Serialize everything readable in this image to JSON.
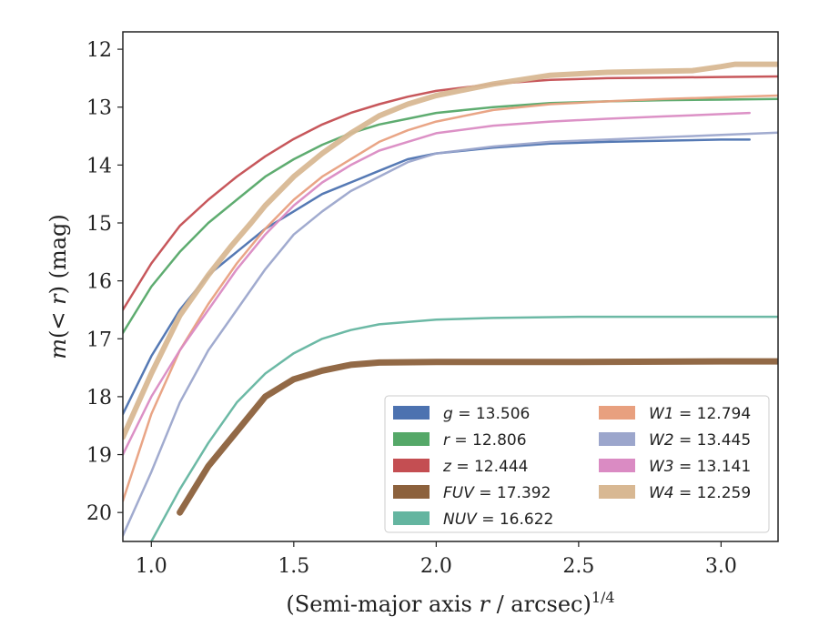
{
  "chart_data": {
    "type": "line",
    "xlabel": "(Semi-major axis r / arcsec)1/4",
    "ylabel": "m(< r) (mag)",
    "xlim": [
      0.9,
      3.2
    ],
    "ylim": [
      20.5,
      11.7
    ],
    "y_inverted": true,
    "x_ticks": [
      "1.0",
      "1.5",
      "2.0",
      "2.5",
      "3.0"
    ],
    "y_ticks": [
      "12",
      "13",
      "14",
      "15",
      "16",
      "17",
      "18",
      "19",
      "20"
    ],
    "grid": false,
    "legend_position": "lower-right",
    "legend_columns": 2,
    "series": [
      {
        "name": "g = 13.506",
        "color": "#4C72B0",
        "x": [
          0.9,
          1.0,
          1.1,
          1.2,
          1.3,
          1.4,
          1.5,
          1.6,
          1.7,
          1.8,
          1.9,
          2.0,
          2.2,
          2.4,
          2.6,
          2.8,
          3.0,
          3.1
        ],
        "y": [
          18.3,
          17.3,
          16.5,
          15.9,
          15.5,
          15.1,
          14.8,
          14.5,
          14.3,
          14.1,
          13.9,
          13.8,
          13.7,
          13.63,
          13.6,
          13.58,
          13.56,
          13.56
        ]
      },
      {
        "name": "r = 12.806",
        "color": "#55A868",
        "x": [
          0.9,
          1.0,
          1.1,
          1.2,
          1.3,
          1.4,
          1.5,
          1.6,
          1.7,
          1.8,
          1.9,
          2.0,
          2.2,
          2.4,
          2.6,
          2.8,
          3.0,
          3.2
        ],
        "y": [
          16.9,
          16.1,
          15.5,
          15.0,
          14.6,
          14.2,
          13.9,
          13.65,
          13.45,
          13.3,
          13.2,
          13.1,
          13.0,
          12.93,
          12.9,
          12.88,
          12.87,
          12.86
        ]
      },
      {
        "name": "z = 12.444",
        "color": "#C44E52",
        "x": [
          0.9,
          1.0,
          1.1,
          1.2,
          1.3,
          1.4,
          1.5,
          1.6,
          1.7,
          1.8,
          1.9,
          2.0,
          2.2,
          2.4,
          2.6,
          2.8,
          3.0,
          3.2
        ],
        "y": [
          16.5,
          15.7,
          15.05,
          14.6,
          14.2,
          13.85,
          13.55,
          13.3,
          13.1,
          12.95,
          12.82,
          12.72,
          12.6,
          12.53,
          12.5,
          12.49,
          12.48,
          12.47
        ]
      },
      {
        "name": "FUV = 17.392",
        "color": "#8C613C",
        "x": [
          1.1,
          1.2,
          1.3,
          1.4,
          1.5,
          1.6,
          1.7,
          1.8,
          2.0,
          2.5,
          3.0,
          3.2
        ],
        "y": [
          20.0,
          19.2,
          18.6,
          18.0,
          17.7,
          17.55,
          17.45,
          17.41,
          17.4,
          17.4,
          17.39,
          17.39
        ]
      },
      {
        "name": "NUV = 16.622",
        "color": "#64B5A0",
        "x": [
          1.0,
          1.1,
          1.2,
          1.3,
          1.4,
          1.5,
          1.6,
          1.7,
          1.8,
          2.0,
          2.2,
          2.5,
          2.8,
          3.2
        ],
        "y": [
          20.5,
          19.6,
          18.8,
          18.1,
          17.6,
          17.25,
          17.0,
          16.85,
          16.75,
          16.67,
          16.64,
          16.62,
          16.62,
          16.62
        ]
      },
      {
        "name": "W1 = 12.794",
        "color": "#E8A07F",
        "x": [
          0.9,
          1.0,
          1.1,
          1.2,
          1.3,
          1.4,
          1.5,
          1.6,
          1.7,
          1.8,
          1.9,
          2.0,
          2.2,
          2.4,
          2.6,
          2.8,
          3.0,
          3.2
        ],
        "y": [
          19.8,
          18.3,
          17.2,
          16.4,
          15.7,
          15.1,
          14.6,
          14.2,
          13.9,
          13.6,
          13.4,
          13.25,
          13.05,
          12.95,
          12.9,
          12.86,
          12.83,
          12.8
        ]
      },
      {
        "name": "W2 = 13.445",
        "color": "#9CA6CC",
        "x": [
          0.9,
          1.0,
          1.1,
          1.2,
          1.3,
          1.4,
          1.5,
          1.6,
          1.7,
          1.8,
          1.9,
          2.0,
          2.2,
          2.4,
          2.6,
          2.8,
          3.0,
          3.2
        ],
        "y": [
          20.4,
          19.3,
          18.1,
          17.2,
          16.5,
          15.8,
          15.2,
          14.8,
          14.45,
          14.2,
          13.95,
          13.8,
          13.68,
          13.6,
          13.56,
          13.52,
          13.48,
          13.44
        ]
      },
      {
        "name": "W3 = 13.141",
        "color": "#DA8BC3",
        "x": [
          0.9,
          1.0,
          1.1,
          1.2,
          1.3,
          1.4,
          1.5,
          1.6,
          1.7,
          1.8,
          1.9,
          2.0,
          2.2,
          2.4,
          2.6,
          2.8,
          3.0,
          3.1
        ],
        "y": [
          19.0,
          18.0,
          17.2,
          16.5,
          15.8,
          15.2,
          14.7,
          14.3,
          14.0,
          13.75,
          13.6,
          13.45,
          13.32,
          13.25,
          13.2,
          13.16,
          13.12,
          13.1
        ]
      },
      {
        "name": "W4 = 12.259",
        "color": "#D8B893",
        "x": [
          0.9,
          1.0,
          1.1,
          1.2,
          1.28,
          1.35,
          1.4,
          1.5,
          1.6,
          1.7,
          1.8,
          1.9,
          2.0,
          2.2,
          2.4,
          2.6,
          2.8,
          2.9,
          3.0,
          3.05,
          3.2
        ],
        "y": [
          18.7,
          17.6,
          16.6,
          15.9,
          15.4,
          15.0,
          14.7,
          14.2,
          13.8,
          13.45,
          13.15,
          12.95,
          12.8,
          12.6,
          12.45,
          12.4,
          12.38,
          12.37,
          12.3,
          12.26,
          12.26
        ]
      }
    ]
  },
  "legend": [
    {
      "var": "g",
      "value": "13.506"
    },
    {
      "var": "r",
      "value": "12.806"
    },
    {
      "var": "z",
      "value": "12.444"
    },
    {
      "var": "FUV",
      "value": "17.392"
    },
    {
      "var": "NUV",
      "value": "16.622"
    },
    {
      "var": "W1",
      "value": "12.794"
    },
    {
      "var": "W2",
      "value": "13.445"
    },
    {
      "var": "W3",
      "value": "13.141"
    },
    {
      "var": "W4",
      "value": "12.259"
    }
  ]
}
